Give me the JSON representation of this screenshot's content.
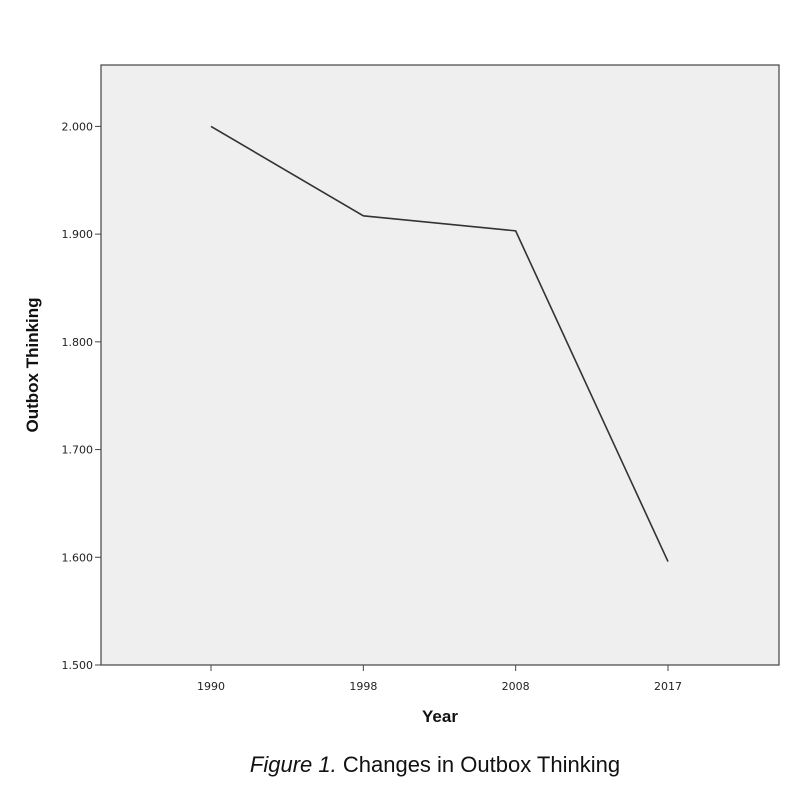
{
  "chart_data": {
    "type": "line",
    "categories": [
      "1990",
      "1998",
      "2008",
      "2017"
    ],
    "series": [
      {
        "values": [
          2.0,
          1.917,
          1.903,
          1.596
        ]
      }
    ],
    "xlabel": "Year",
    "ylabel": "Outbox Thinking",
    "ylim": [
      1.5,
      2.057
    ],
    "yticks": [
      "1.500",
      "1.600",
      "1.700",
      "1.800",
      "1.900",
      "2.000"
    ],
    "grid": false,
    "colors": {
      "plot_background": "#efefef",
      "line": "#333333",
      "frame": "#444444"
    }
  },
  "caption": {
    "label": "Figure  1.",
    "text": "Changes in Outbox Thinking"
  }
}
